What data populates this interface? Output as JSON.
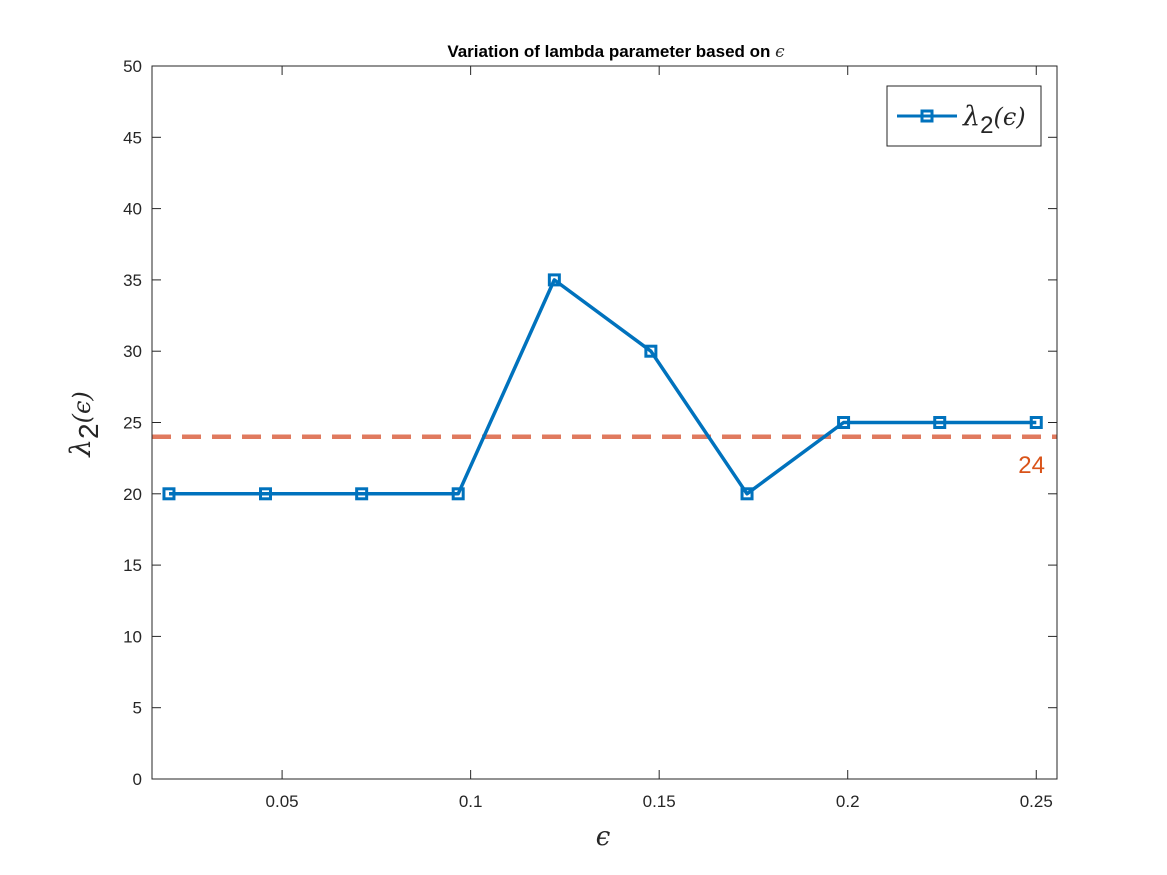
{
  "chart_data": {
    "type": "line",
    "title": "Variation of lambda parameter based on ",
    "title_symbol": "ϵ",
    "xlabel": "ϵ",
    "ylabel": {
      "base": "λ",
      "sub": "2",
      "arg": "(ϵ)"
    },
    "xlim": [
      0.0155,
      0.2555
    ],
    "ylim": [
      0,
      50
    ],
    "xticks": [
      0.05,
      0.1,
      0.15,
      0.2,
      0.25
    ],
    "xtick_labels": [
      "0.05",
      "0.1",
      "0.15",
      "0.2",
      "0.25"
    ],
    "yticks": [
      0,
      5,
      10,
      15,
      20,
      25,
      30,
      35,
      40,
      45,
      50
    ],
    "ytick_labels": [
      "0",
      "5",
      "10",
      "15",
      "20",
      "25",
      "30",
      "35",
      "40",
      "45",
      "50"
    ],
    "grid": false,
    "legend_position": "top-right",
    "series": [
      {
        "name": {
          "base": "λ",
          "sub": "2",
          "arg": "(ϵ)"
        },
        "color": "#0072BD",
        "marker": "square",
        "x": [
          0.02,
          0.0456,
          0.0711,
          0.0967,
          0.1222,
          0.1478,
          0.1733,
          0.1989,
          0.2244,
          0.25
        ],
        "y": [
          20,
          20,
          20,
          20,
          35,
          30,
          20,
          25,
          25,
          25
        ]
      }
    ],
    "reference_line": {
      "y": 24,
      "label": "24",
      "color": "#E07A5F",
      "label_color": "#D95319",
      "style": "dashed"
    }
  }
}
